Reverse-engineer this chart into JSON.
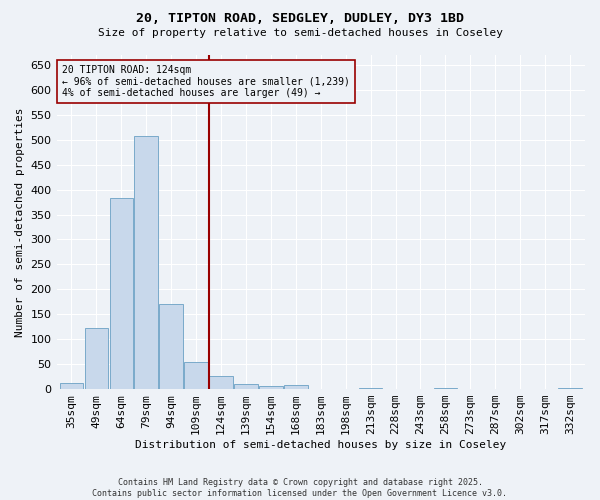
{
  "title_line1": "20, TIPTON ROAD, SEDGLEY, DUDLEY, DY3 1BD",
  "title_line2": "Size of property relative to semi-detached houses in Coseley",
  "xlabel": "Distribution of semi-detached houses by size in Coseley",
  "ylabel": "Number of semi-detached properties",
  "bar_color": "#c8d8eb",
  "bar_edge_color": "#7aaaca",
  "vline_color": "#990000",
  "annotation_title": "20 TIPTON ROAD: 124sqm",
  "annotation_line1": "← 96% of semi-detached houses are smaller (1,239)",
  "annotation_line2": "4% of semi-detached houses are larger (49) →",
  "categories": [
    "35sqm",
    "49sqm",
    "64sqm",
    "79sqm",
    "94sqm",
    "109sqm",
    "124sqm",
    "139sqm",
    "154sqm",
    "168sqm",
    "183sqm",
    "198sqm",
    "213sqm",
    "228sqm",
    "243sqm",
    "258sqm",
    "273sqm",
    "287sqm",
    "302sqm",
    "317sqm",
    "332sqm"
  ],
  "values": [
    12,
    122,
    383,
    507,
    170,
    55,
    26,
    10,
    7,
    8,
    0,
    0,
    3,
    0,
    0,
    3,
    0,
    0,
    0,
    0,
    3
  ],
  "vline_index": 6,
  "ylim": [
    0,
    670
  ],
  "yticks": [
    0,
    50,
    100,
    150,
    200,
    250,
    300,
    350,
    400,
    450,
    500,
    550,
    600,
    650
  ],
  "background_color": "#eef2f7",
  "grid_color": "#ffffff",
  "footer_line1": "Contains HM Land Registry data © Crown copyright and database right 2025.",
  "footer_line2": "Contains public sector information licensed under the Open Government Licence v3.0."
}
